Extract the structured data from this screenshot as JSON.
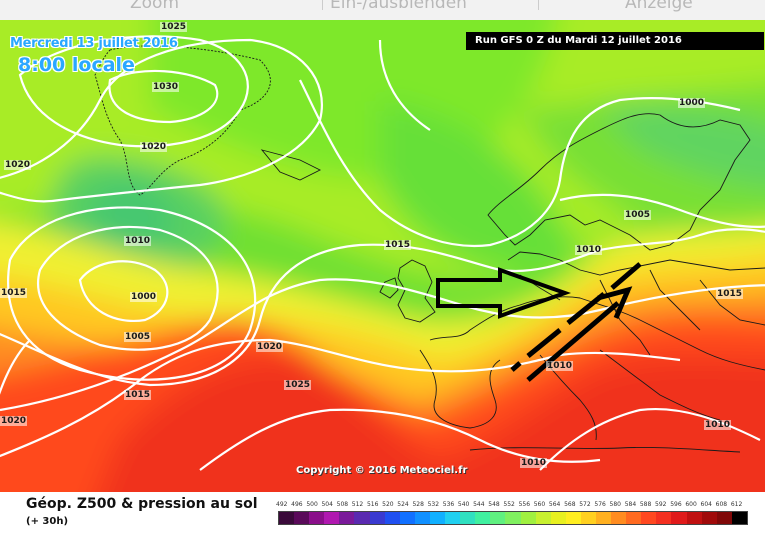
{
  "top_bar": {
    "items": [
      "Zoom",
      "Ein-/ausblenden",
      "Anzeige"
    ]
  },
  "map": {
    "date_label": "Mercredi 13 juillet 2016",
    "hour_label": "8:00 locale",
    "run_label": "Run GFS 0 Z du Mardi 12 juillet 2016",
    "copyright": "Copyright © 2016 Meteociel.fr",
    "isobar_labels": [
      "1025",
      "1030",
      "1020",
      "1020",
      "1010",
      "1015",
      "1000",
      "1005",
      "1015",
      "1020",
      "1025",
      "1015",
      "1010",
      "1000",
      "1005",
      "1015",
      "1010",
      "1010",
      "1010",
      "1020"
    ],
    "annotations": [
      "flow-arrow",
      "trend-arrow"
    ]
  },
  "footer": {
    "title": "Géop. Z500 & pression au sol",
    "subtitle": "(+ 30h)"
  },
  "legend": {
    "labels": [
      "492",
      "496",
      "500",
      "504",
      "508",
      "512",
      "516",
      "520",
      "524",
      "528",
      "532",
      "536",
      "540",
      "544",
      "548",
      "552",
      "556",
      "560",
      "564",
      "568",
      "572",
      "576",
      "580",
      "584",
      "588",
      "592",
      "596",
      "600",
      "604",
      "608",
      "612"
    ],
    "colors": [
      "#3a0a3a",
      "#5a0a5a",
      "#8a0f8a",
      "#b018b0",
      "#7a1a9a",
      "#5a2ab0",
      "#3a3ad0",
      "#2050f0",
      "#1070ff",
      "#1090ff",
      "#10b0ff",
      "#20d0f0",
      "#30e0c0",
      "#40f0a0",
      "#60f080",
      "#80f060",
      "#a0f040",
      "#c8f030",
      "#e8f020",
      "#ffee20",
      "#ffd020",
      "#ffb020",
      "#ff8c20",
      "#ff6a20",
      "#ff4820",
      "#f43020",
      "#e01a1a",
      "#c01010",
      "#a00a0a",
      "#800808",
      "#000000"
    ]
  }
}
